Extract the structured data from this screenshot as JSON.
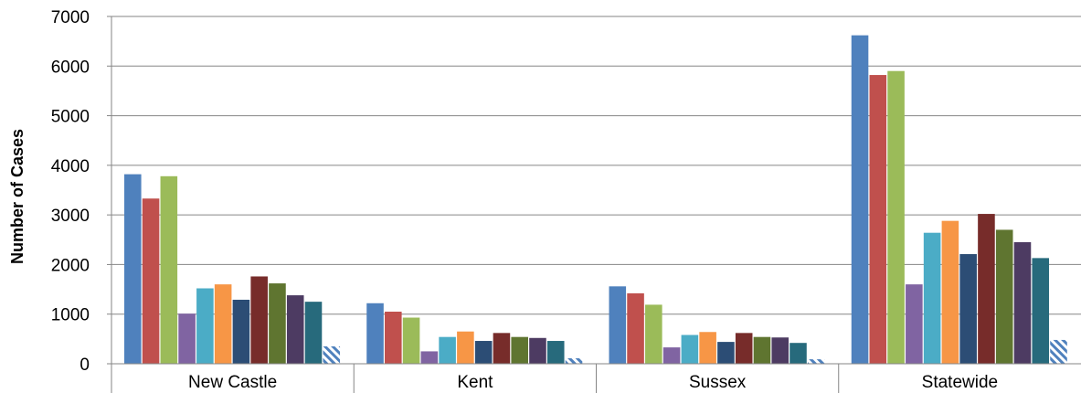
{
  "chart_data": {
    "type": "bar",
    "title": "",
    "xlabel": "",
    "ylabel": "Number of Cases",
    "ylim": [
      0,
      7000
    ],
    "yticks": [
      0,
      1000,
      2000,
      3000,
      4000,
      5000,
      6000,
      7000
    ],
    "grid": true,
    "legend": "none",
    "categories": [
      "New Castle",
      "Kent",
      "Sussex",
      "Statewide"
    ],
    "series": [
      {
        "color": "#4F81BD",
        "values": [
          3820,
          1220,
          1560,
          6620
        ]
      },
      {
        "color": "#C0504D",
        "values": [
          3330,
          1050,
          1420,
          5820
        ]
      },
      {
        "color": "#9BBB59",
        "values": [
          3780,
          930,
          1190,
          5900
        ]
      },
      {
        "color": "#8064A2",
        "values": [
          1010,
          250,
          330,
          1600
        ]
      },
      {
        "color": "#4BACC6",
        "values": [
          1520,
          540,
          580,
          2640
        ]
      },
      {
        "color": "#F79646",
        "values": [
          1600,
          650,
          640,
          2880
        ]
      },
      {
        "color": "#2C4D75",
        "values": [
          1290,
          460,
          440,
          2210
        ]
      },
      {
        "color": "#772C2A",
        "values": [
          1760,
          620,
          620,
          3020
        ]
      },
      {
        "color": "#5F7530",
        "values": [
          1620,
          540,
          540,
          2700
        ]
      },
      {
        "color": "#4D3B62",
        "values": [
          1380,
          520,
          530,
          2450
        ]
      },
      {
        "color": "#276A7C",
        "values": [
          1250,
          460,
          420,
          2130
        ]
      },
      {
        "color": "#4F81BD",
        "pattern": "diagonal-stripe",
        "values": [
          350,
          110,
          90,
          480
        ]
      }
    ]
  }
}
